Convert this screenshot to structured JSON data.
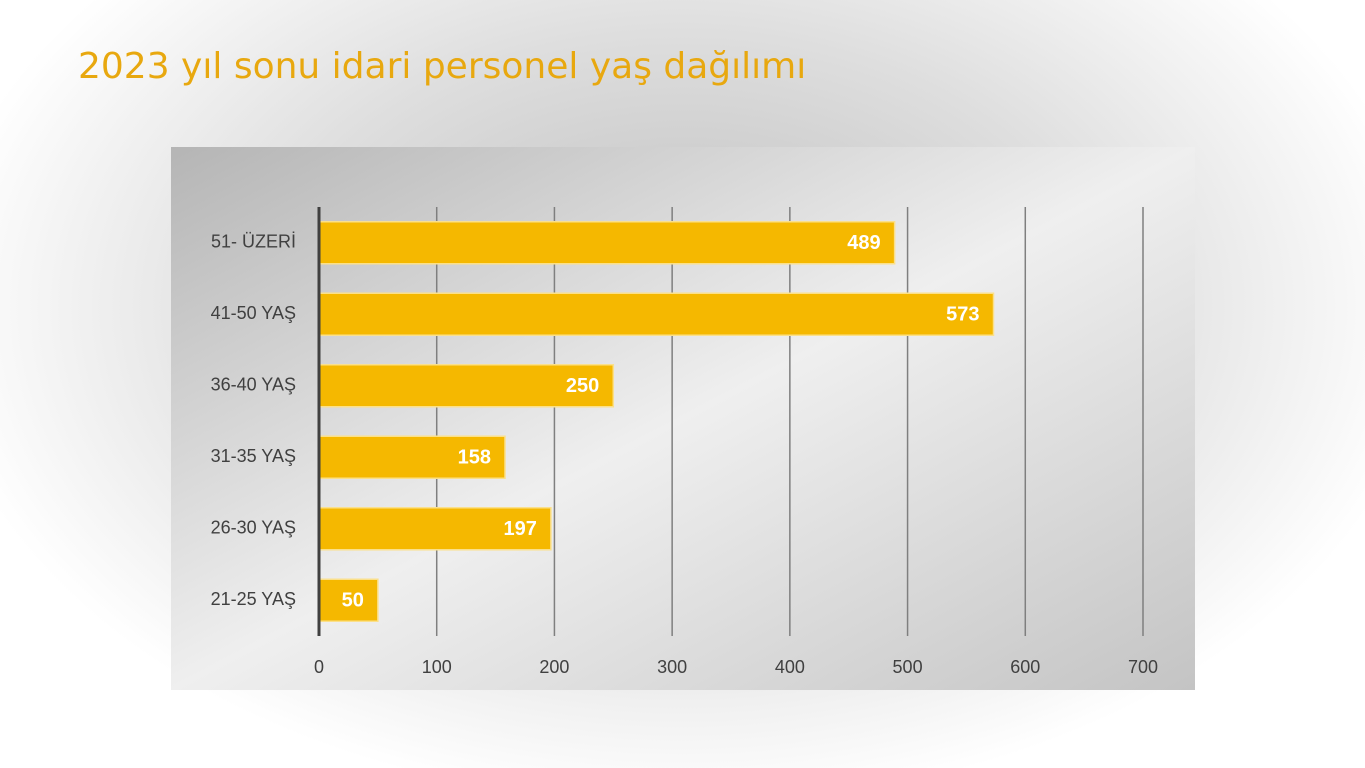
{
  "chart_data": {
    "type": "bar",
    "orientation": "horizontal",
    "title": "2023 yıl sonu idari personel yaş dağılımı",
    "categories": [
      "51- ÜZERİ",
      "41-50 YAŞ",
      "36-40 YAŞ",
      "31-35 YAŞ",
      "26-30 YAŞ",
      "21-25 YAŞ"
    ],
    "values": [
      489,
      573,
      250,
      158,
      197,
      50
    ],
    "color": "#f5b800",
    "xlim": [
      0,
      700
    ],
    "xticks": [
      0,
      100,
      200,
      300,
      400,
      500,
      600,
      700
    ],
    "grid": true
  }
}
